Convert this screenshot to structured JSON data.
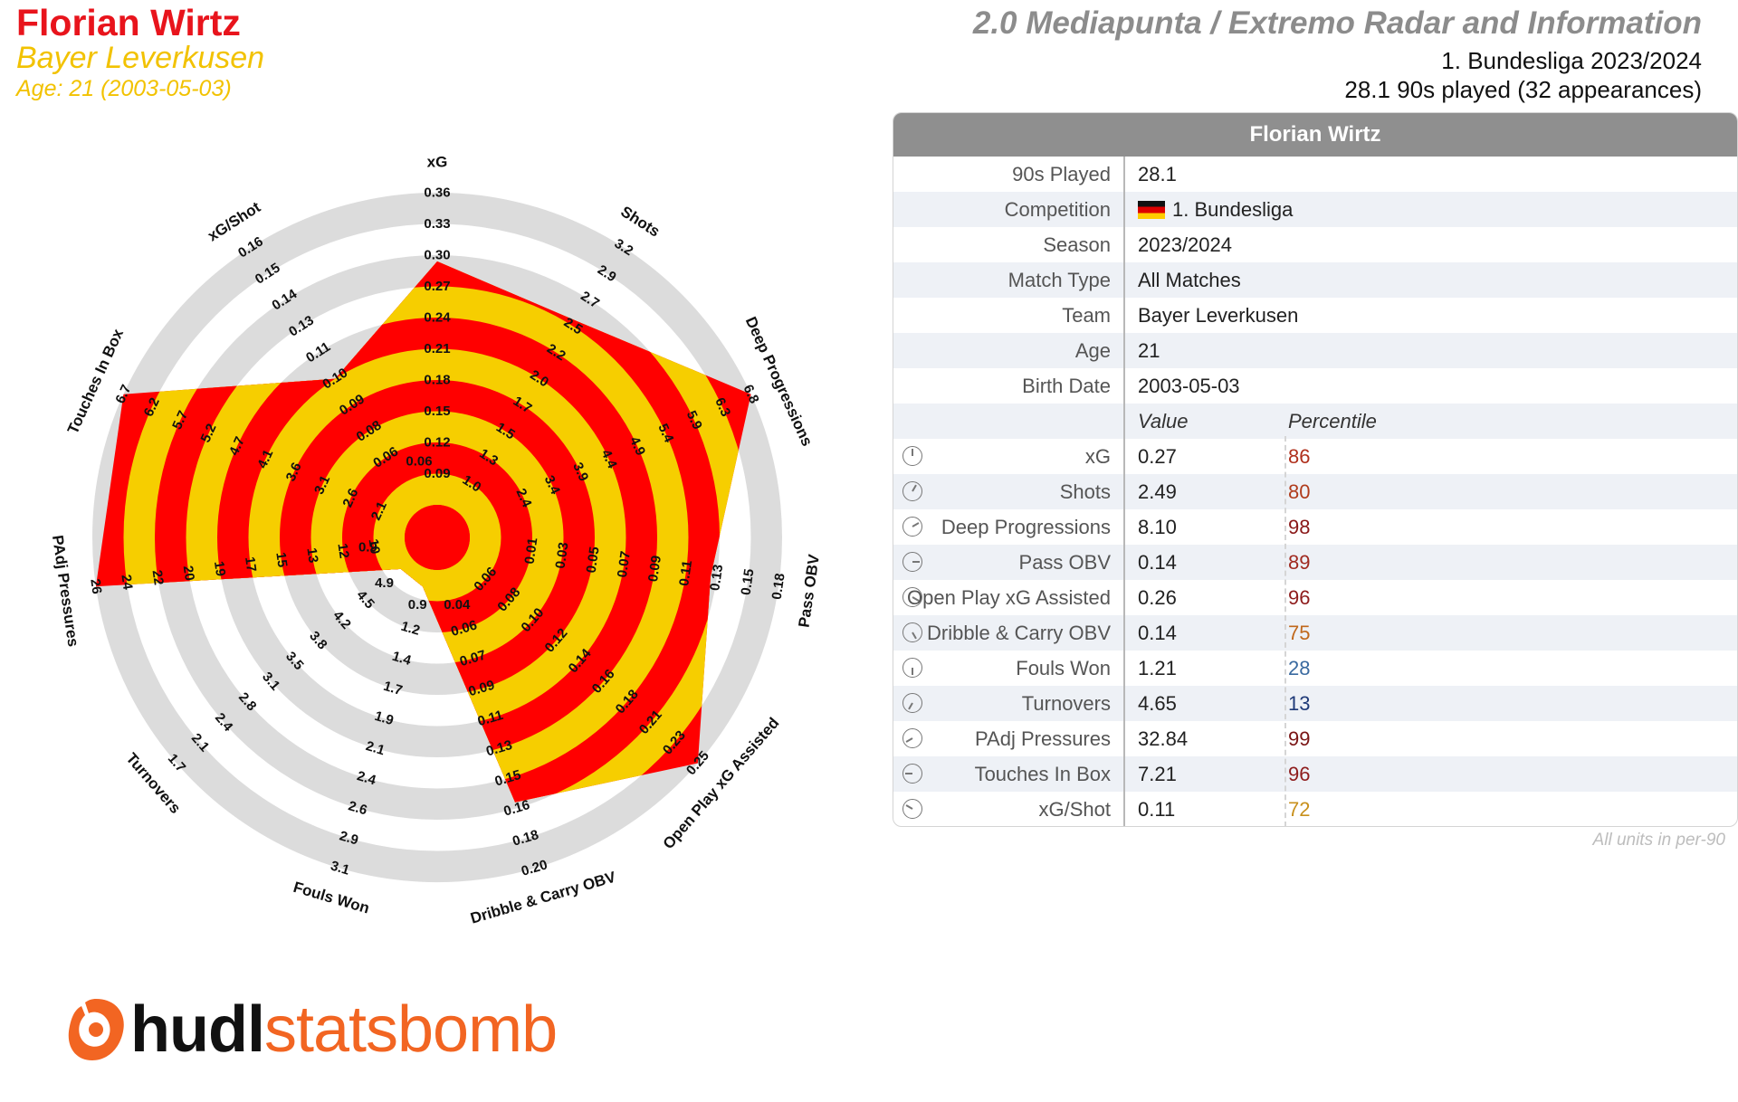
{
  "header": {
    "player_name": "Florian Wirtz",
    "club": "Bayer Leverkusen",
    "age_line": "Age: 21 (2003-05-03)",
    "report_title": "2.0 Mediapunta / Extremo Radar and Information",
    "competition_season": "1. Bundesliga 2023/2024",
    "minutes_line": "28.1 90s played (32 appearances)"
  },
  "colors": {
    "red": "#ff0000",
    "yellow": "#f6ce00",
    "ring_grey": "#dcdcdc",
    "accent_orange": "#f26522"
  },
  "chart_data": {
    "type": "radar",
    "axes": [
      {
        "label": "xG",
        "ticks": [
          "0.09",
          "0.12",
          "0.15",
          "0.18",
          "0.21",
          "0.24",
          "0.27",
          "0.30",
          "0.33",
          "0.36"
        ],
        "value": 0.27
      },
      {
        "label": "Shots",
        "ticks": [
          "1.0",
          "1.3",
          "1.5",
          "1.7",
          "2.0",
          "2.2",
          "2.5",
          "2.7",
          "2.9",
          "3.2"
        ],
        "value": 2.49
      },
      {
        "label": "Deep Progressions",
        "ticks": [
          "2.4",
          "3.4",
          "3.9",
          "4.4",
          "4.9",
          "5.4",
          "5.9",
          "6.3",
          "6.8"
        ],
        "value": 8.1
      },
      {
        "label": "Pass OBV",
        "ticks": [
          "0.01",
          "0.03",
          "0.05",
          "0.07",
          "0.09",
          "0.11",
          "0.13",
          "0.15",
          "0.18"
        ],
        "value": 0.14
      },
      {
        "label": "Open Play xG Assisted",
        "ticks": [
          "0.06",
          "0.08",
          "0.10",
          "0.12",
          "0.14",
          "0.16",
          "0.18",
          "0.21",
          "0.23",
          "0.25"
        ],
        "value": 0.26
      },
      {
        "label": "Dribble & Carry OBV",
        "ticks": [
          "0.06",
          "0.07",
          "0.09",
          "0.11",
          "0.13",
          "0.15",
          "0.16",
          "0.18",
          "0.20"
        ],
        "value": 0.14
      },
      {
        "label": "Fouls Won",
        "ticks": [
          "1.2",
          "1.4",
          "1.7",
          "1.9",
          "2.1",
          "2.4",
          "2.6",
          "2.9",
          "3.1"
        ],
        "value": 1.21
      },
      {
        "label": "Turnovers",
        "ticks": [
          "4.5",
          "4.2",
          "3.8",
          "3.5",
          "3.1",
          "2.8",
          "2.4",
          "2.1",
          "1.7"
        ],
        "value": 4.65
      },
      {
        "label": "PAdj Pressures",
        "ticks": [
          "10",
          "12",
          "13",
          "15",
          "17",
          "19",
          "20",
          "22",
          "24",
          "26"
        ],
        "value": 32.84
      },
      {
        "label": "Touches In Box",
        "ticks": [
          "2.1",
          "2.6",
          "3.1",
          "3.6",
          "4.1",
          "4.7",
          "5.2",
          "5.7",
          "6.2",
          "6.7"
        ],
        "value": 7.21
      },
      {
        "label": "xG/Shot",
        "ticks": [
          "0.06",
          "0.08",
          "0.09",
          "0.10",
          "0.11",
          "0.13",
          "0.14",
          "0.15",
          "0.16"
        ],
        "value": 0.11
      }
    ],
    "shape_fraction": [
      0.78,
      0.72,
      1.0,
      0.78,
      1.0,
      0.78,
      0.06,
      0.05,
      1.0,
      1.0,
      0.5
    ],
    "center_label_xg": "0.06",
    "inner_labels": [
      "0.04",
      "0.9",
      "4.9",
      "0.9"
    ]
  },
  "table": {
    "header": "Florian Wirtz",
    "info_rows": [
      {
        "label": "90s Played",
        "value": "28.1"
      },
      {
        "label": "Competition",
        "value": "1. Bundesliga",
        "flag": "germany-flag"
      },
      {
        "label": "Season",
        "value": "2023/2024"
      },
      {
        "label": "Match Type",
        "value": "All Matches"
      },
      {
        "label": "Team",
        "value": "Bayer Leverkusen"
      },
      {
        "label": "Age",
        "value": "21"
      },
      {
        "label": "Birth Date",
        "value": "2003-05-03"
      }
    ],
    "value_header": "Value",
    "percentile_header": "Percentile",
    "stat_rows": [
      {
        "label": "xG",
        "value": "0.27",
        "percentile": "86",
        "color": "#b0301c"
      },
      {
        "label": "Shots",
        "value": "2.49",
        "percentile": "80",
        "color": "#b03c1c"
      },
      {
        "label": "Deep Progressions",
        "value": "8.10",
        "percentile": "98",
        "color": "#8a1818"
      },
      {
        "label": "Pass OBV",
        "value": "0.14",
        "percentile": "89",
        "color": "#a02a20"
      },
      {
        "label": "Open Play xG Assisted",
        "value": "0.26",
        "percentile": "96",
        "color": "#8e1c1c"
      },
      {
        "label": "Dribble & Carry OBV",
        "value": "0.14",
        "percentile": "75",
        "color": "#c0681c"
      },
      {
        "label": "Fouls Won",
        "value": "1.21",
        "percentile": "28",
        "color": "#3a6aa0"
      },
      {
        "label": "Turnovers",
        "value": "4.65",
        "percentile": "13",
        "color": "#1f3a78"
      },
      {
        "label": "PAdj Pressures",
        "value": "32.84",
        "percentile": "99",
        "color": "#7a1414"
      },
      {
        "label": "Touches In Box",
        "value": "7.21",
        "percentile": "96",
        "color": "#8e1c1c"
      },
      {
        "label": "xG/Shot",
        "value": "0.11",
        "percentile": "72",
        "color": "#c8901c"
      }
    ],
    "footnote": "All units in per-90"
  },
  "logo": {
    "text_bold": "hudl",
    "text_light": "statsbomb"
  }
}
